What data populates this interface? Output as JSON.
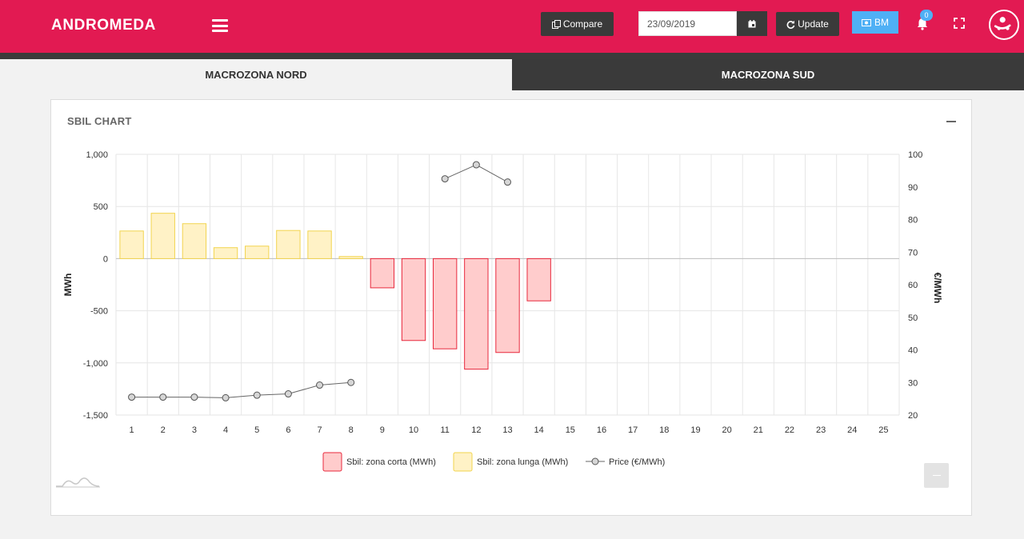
{
  "app": {
    "title": "ANDROMEDA"
  },
  "header": {
    "compare_label": "Compare",
    "date_value": "23/09/2019",
    "update_label": "Update",
    "bm_label": "BM",
    "notification_count": "0",
    "colors": {
      "brand": "#e21a52",
      "dark": "#3a3a3a",
      "accent": "#4fb0f5"
    }
  },
  "tabs": [
    {
      "label": "MACROZONA NORD",
      "active": true
    },
    {
      "label": "MACROZONA SUD",
      "active": false
    }
  ],
  "panel": {
    "title": "SBIL CHART"
  },
  "chart_data": {
    "type": "bar",
    "categories": [
      "1",
      "2",
      "3",
      "4",
      "5",
      "6",
      "7",
      "8",
      "9",
      "10",
      "11",
      "12",
      "13",
      "14",
      "15",
      "16",
      "17",
      "18",
      "19",
      "20",
      "21",
      "22",
      "23",
      "24",
      "25"
    ],
    "left_axis": {
      "title": "MWh",
      "min": -1500,
      "max": 1000,
      "ticks": [
        "1,000",
        "500",
        "0",
        "-500",
        "-1,000",
        "-1,500"
      ],
      "tick_values": [
        1000,
        500,
        0,
        -500,
        -1000,
        -1500
      ]
    },
    "right_axis": {
      "title": "€/MWh",
      "min": 20,
      "max": 100,
      "ticks": [
        "100",
        "90",
        "80",
        "70",
        "60",
        "50",
        "40",
        "30",
        "20"
      ],
      "tick_values": [
        100,
        90,
        80,
        70,
        60,
        50,
        40,
        30,
        20
      ]
    },
    "grid": true,
    "legend_position": "bottom",
    "series": [
      {
        "name": "Sbil: zona corta (MWh)",
        "type": "bar",
        "axis": "left",
        "fill": "#ffcccc",
        "stroke": "#e8283c",
        "values": [
          null,
          null,
          null,
          null,
          null,
          null,
          null,
          null,
          -280,
          -785,
          -865,
          -1060,
          -900,
          -405,
          null,
          null,
          null,
          null,
          null,
          null,
          null,
          null,
          null,
          null,
          null
        ]
      },
      {
        "name": "Sbil: zona lunga (MWh)",
        "type": "bar",
        "axis": "left",
        "fill": "#fff2c6",
        "stroke": "#f2d44e",
        "values": [
          265,
          435,
          335,
          105,
          120,
          270,
          265,
          20,
          null,
          null,
          null,
          null,
          null,
          null,
          null,
          null,
          null,
          null,
          null,
          null,
          null,
          null,
          null,
          null,
          null
        ]
      },
      {
        "name": "Price (€/MWh)",
        "type": "line",
        "axis": "right",
        "stroke": "#666666",
        "values": [
          25.5,
          25.5,
          25.5,
          25.3,
          26.1,
          26.5,
          29.2,
          30,
          null,
          null,
          92.5,
          96.8,
          91.5,
          null,
          null,
          null,
          null,
          null,
          null,
          null,
          null,
          null,
          null,
          null,
          null
        ]
      }
    ]
  }
}
